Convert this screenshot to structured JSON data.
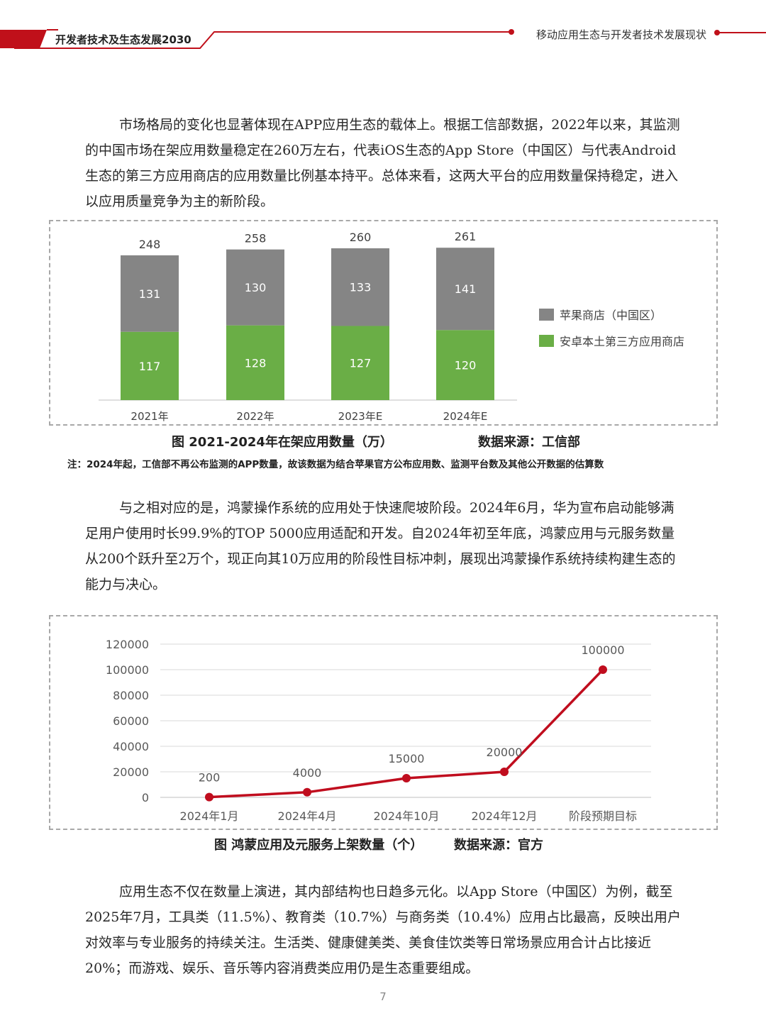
{
  "header": {
    "left_title": "开发者技术及生态发展2030",
    "right_title": "移动应用生态与开发者技术发展现状",
    "accent_color": "#c0101a"
  },
  "paragraphs": {
    "p1": "市场格局的变化也显著体现在APP应用生态的载体上。根据工信部数据，2022年以来，其监测的中国市场在架应用数量稳定在260万左右，代表iOS生态的App Store（中国区）与代表Android生态的第三方应用商店的应用数量比例基本持平。总体来看，这两大平台的应用数量保持稳定，进入以应用质量竞争为主的新阶段。",
    "p2": "与之相对应的是，鸿蒙操作系统的应用处于快速爬坡阶段。2024年6月，华为宣布启动能够满足用户使用时长99.9%的TOP 5000应用适配和开发。自2024年初至年底，鸿蒙应用与元服务数量从200个跃升至2万个，现正向其10万应用的阶段性目标冲刺，展现出鸿蒙操作系统持续构建生态的能力与决心。",
    "p3": "应用生态不仅在数量上演进，其内部结构也日趋多元化。以App Store（中国区）为例，截至2025年7月，工具类（11.5%）、教育类（10.7%）与商务类（10.4%）应用占比最高，反映出用户对效率与专业服务的持续关注。生活类、健康健美类、美食佳饮类等日常场景应用合计占比接近20%；而游戏、娱乐、音乐等内容消费类应用仍是生态重要组成。"
  },
  "captions": {
    "chart1": "图 2021-2024年在架应用数量（万）",
    "chart1_source": "数据来源：工信部",
    "note": "注：2024年起，工信部不再公布监测的APP数量，故该数据为结合苹果官方公布应用数、监测平台数及其他公开数据的估算数",
    "chart2": "图 鸿蒙应用及元服务上架数量（个）",
    "chart2_source": "数据来源：官方"
  },
  "page_number": "7",
  "chart_data": [
    {
      "type": "bar",
      "stacked": true,
      "categories": [
        "2021年",
        "2022年",
        "2023年E",
        "2024年E"
      ],
      "series": [
        {
          "name": "安卓本土第三方应用商店",
          "values": [
            117,
            128,
            127,
            120
          ],
          "color": "#6aae46"
        },
        {
          "name": "苹果商店（中国区）",
          "values": [
            131,
            130,
            133,
            141
          ],
          "color": "#858585"
        }
      ],
      "totals": [
        248,
        258,
        260,
        261
      ],
      "legend": [
        "苹果商店（中国区）",
        "安卓本土第三方应用商店"
      ],
      "legend_position": "right",
      "grid": false
    },
    {
      "type": "line",
      "categories": [
        "2024年1月",
        "2024年4月",
        "2024年10月",
        "2024年12月",
        "阶段预期目标"
      ],
      "series": [
        {
          "values": [
            200,
            4000,
            15000,
            20000,
            100000
          ],
          "color": "#c00d1e"
        }
      ],
      "data_labels": [
        "200",
        "4000",
        "15000",
        "20000",
        "100000"
      ],
      "y_ticks": [
        "0",
        "20000",
        "40000",
        "60000",
        "80000",
        "100000",
        "120000"
      ],
      "ylim": [
        0,
        120000
      ],
      "grid": true
    }
  ]
}
